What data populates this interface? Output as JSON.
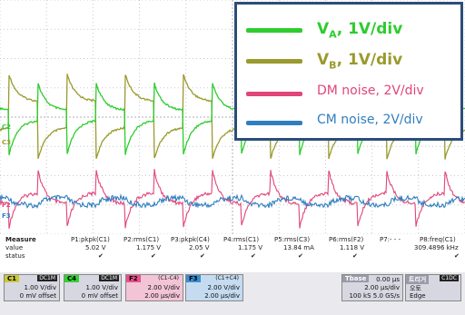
{
  "legend": {
    "items": [
      {
        "main": "V",
        "sub": "A",
        "suffix": ", 1V/div",
        "color": "#2ecc2e",
        "size": "big"
      },
      {
        "main": "V",
        "sub": "B",
        "suffix": ", 1V/div",
        "color": "#9a9a2e",
        "size": "big"
      },
      {
        "text": "DM noise, 2V/div",
        "color": "#e0457b",
        "size": "small"
      },
      {
        "text": "CM noise, 2V/div",
        "color": "#2f7fc0",
        "size": "small"
      }
    ]
  },
  "channel_markers": {
    "c2": "C2",
    "c3": "C3",
    "f2": "F2",
    "f3": "F3"
  },
  "measure": {
    "row_labels": [
      "Measure",
      "value",
      "status"
    ],
    "columns": [
      {
        "head": "P1:pkpk(C1)",
        "value": "5.02 V",
        "status": "✔"
      },
      {
        "head": "P2:rms(C1)",
        "value": "1.175 V",
        "status": "✔"
      },
      {
        "head": "P3:pkpk(C4)",
        "value": "2.05 V",
        "status": "✔"
      },
      {
        "head": "P4:rms(C1)",
        "value": "1.175 V",
        "status": "✔"
      },
      {
        "head": "P5:rms(C3)",
        "value": "13.84 mA",
        "status": "✔"
      },
      {
        "head": "P6:rms(F2)",
        "value": "1.118 V",
        "status": "✔"
      },
      {
        "head": "P7:- - -",
        "value": "",
        "status": ""
      },
      {
        "head": "P8:freq(C1)",
        "value": "309.4896 kHz",
        "status": "✔"
      }
    ]
  },
  "channels": [
    {
      "label": "C1",
      "tag": "DC1M",
      "lines": [
        "1.00 V/div",
        "0 mV offset"
      ],
      "color": "#c8c83a"
    },
    {
      "label": "C4",
      "tag": "DC1M",
      "lines": [
        "1.00 V/div",
        "0 mV offset"
      ],
      "color": "#35d035"
    },
    {
      "label": "F2",
      "tag": "(C1-C4)",
      "lines": [
        "2.00 V/div",
        "2.00 µs/div"
      ],
      "color": "#e8508a"
    },
    {
      "label": "F3",
      "tag": "(C1+C4)",
      "lines": [
        "2.00 V/div",
        "2.00 µs/div"
      ],
      "color": "#3a8ed0"
    }
  ],
  "timebase": {
    "label": "Tbase",
    "value": "0.00 µs",
    "lines": [
      "2.00 µs/div",
      "100 kS   5.0 GS/s"
    ]
  },
  "trigger": {
    "label": "트리거",
    "tag": "C1DC",
    "lines": [
      "오토",
      "Edge"
    ]
  }
}
